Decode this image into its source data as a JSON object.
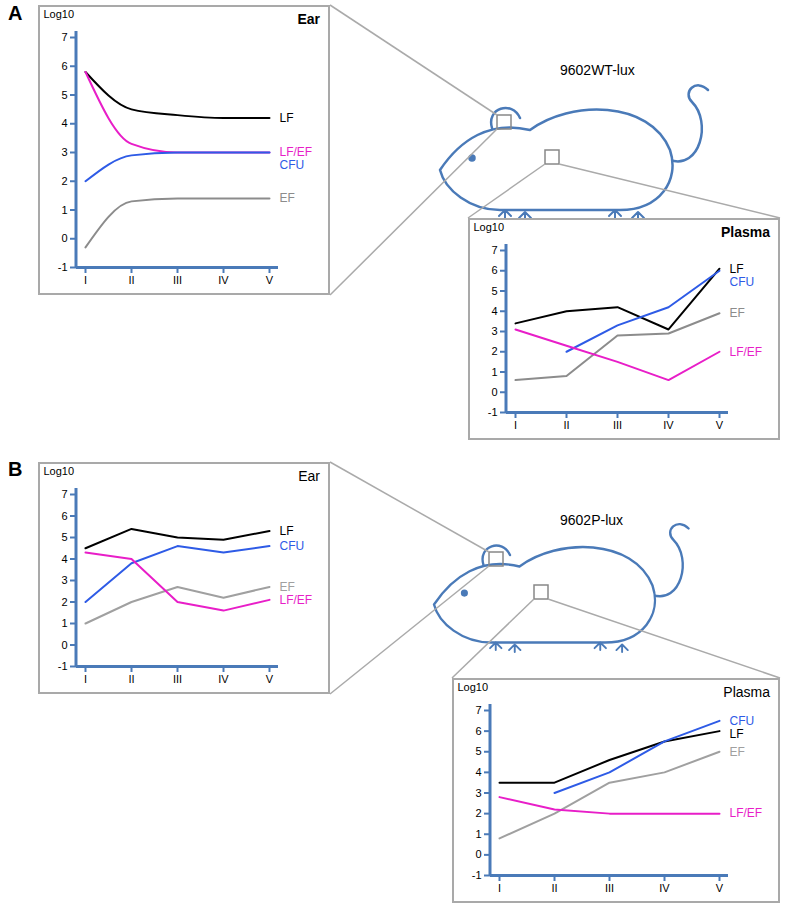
{
  "figure": {
    "panels": [
      {
        "label": "A",
        "strain": "9602WT-lux"
      },
      {
        "label": "B",
        "strain": "9602P-lux"
      }
    ]
  },
  "chart_data": [
    {
      "type": "line",
      "panel": "A",
      "title": "Ear",
      "y_label": "Log10",
      "categories": [
        "I",
        "II",
        "III",
        "IV",
        "V"
      ],
      "ylim": [
        -1,
        7
      ],
      "yticks": [
        -1,
        0,
        1,
        2,
        3,
        4,
        5,
        6,
        7
      ],
      "line_style": "smooth",
      "series": [
        {
          "name": "LF",
          "color": "#000000",
          "values": [
            5.8,
            4.5,
            4.3,
            4.2,
            4.2
          ]
        },
        {
          "name": "LF/EF",
          "color": "#e81ec8",
          "values": [
            5.8,
            3.3,
            3.0,
            3.0,
            3.0
          ]
        },
        {
          "name": "CFU",
          "color": "#2e5be6",
          "values": [
            2.0,
            2.9,
            3.0,
            3.0,
            3.0
          ]
        },
        {
          "name": "EF",
          "color": "#8c8c8c",
          "values": [
            -0.3,
            1.3,
            1.4,
            1.4,
            1.4
          ]
        }
      ]
    },
    {
      "type": "line",
      "panel": "A",
      "title": "Plasma",
      "y_label": "Log10",
      "categories": [
        "I",
        "II",
        "III",
        "IV",
        "V"
      ],
      "ylim": [
        -1,
        7
      ],
      "yticks": [
        -1,
        0,
        1,
        2,
        3,
        4,
        5,
        6,
        7
      ],
      "line_style": "solid",
      "series": [
        {
          "name": "LF",
          "color": "#000000",
          "values": [
            3.4,
            4.0,
            4.2,
            3.1,
            6.1
          ]
        },
        {
          "name": "CFU",
          "color": "#2e5be6",
          "values": [
            null,
            2.0,
            3.3,
            4.2,
            6.0
          ]
        },
        {
          "name": "EF",
          "color": "#8c8c8c",
          "values": [
            0.6,
            0.8,
            2.8,
            2.9,
            3.9
          ]
        },
        {
          "name": "LF/EF",
          "color": "#e81ec8",
          "values": [
            3.1,
            2.3,
            1.5,
            0.6,
            2.0
          ]
        }
      ]
    },
    {
      "type": "line",
      "panel": "B",
      "title": "Ear",
      "y_label": "Log10",
      "categories": [
        "I",
        "II",
        "III",
        "IV",
        "V"
      ],
      "ylim": [
        -1,
        7
      ],
      "yticks": [
        -1,
        0,
        1,
        2,
        3,
        4,
        5,
        6,
        7
      ],
      "line_style": "solid",
      "series": [
        {
          "name": "LF",
          "color": "#000000",
          "values": [
            4.5,
            5.4,
            5.0,
            4.9,
            5.3
          ]
        },
        {
          "name": "CFU",
          "color": "#2e5be6",
          "values": [
            2.0,
            3.8,
            4.6,
            4.3,
            4.6
          ]
        },
        {
          "name": "EF",
          "color": "#a0a0a0",
          "values": [
            1.0,
            2.0,
            2.7,
            2.2,
            2.7
          ]
        },
        {
          "name": "LF/EF",
          "color": "#e81ec8",
          "values": [
            4.3,
            4.0,
            2.0,
            1.6,
            2.1
          ]
        }
      ]
    },
    {
      "type": "line",
      "panel": "B",
      "title": "Plasma",
      "y_label": "Log10",
      "categories": [
        "I",
        "II",
        "III",
        "IV",
        "V"
      ],
      "ylim": [
        -1,
        7
      ],
      "yticks": [
        -1,
        0,
        1,
        2,
        3,
        4,
        5,
        6,
        7
      ],
      "line_style": "solid",
      "series": [
        {
          "name": "LF",
          "color": "#000000",
          "values": [
            3.5,
            3.5,
            4.6,
            5.5,
            6.0
          ]
        },
        {
          "name": "CFU",
          "color": "#2e5be6",
          "values": [
            null,
            3.0,
            4.0,
            5.5,
            6.5
          ]
        },
        {
          "name": "EF",
          "color": "#a0a0a0",
          "values": [
            0.8,
            2.0,
            3.5,
            4.0,
            5.0
          ]
        },
        {
          "name": "LF/EF",
          "color": "#e81ec8",
          "values": [
            2.8,
            2.2,
            2.0,
            2.0,
            2.0
          ]
        }
      ]
    }
  ]
}
